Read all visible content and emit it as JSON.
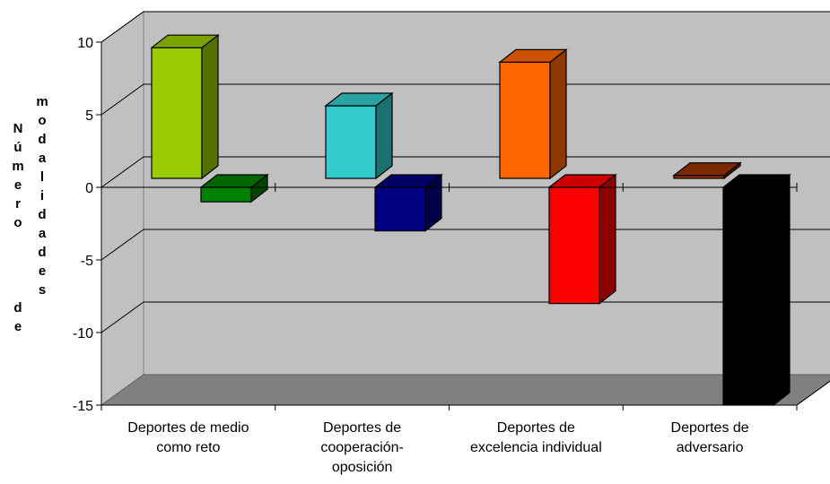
{
  "chart_data": {
    "type": "bar",
    "categories": [
      "Deportes de medio como reto",
      "Deportes de cooperación-oposición",
      "Deportes de excelencia individual",
      "Deportes de adversario"
    ],
    "category_lines": [
      [
        "Deportes de medio",
        "como reto"
      ],
      [
        "Deportes de",
        "cooperación-",
        "oposición"
      ],
      [
        "Deportes de",
        "excelencia individual"
      ],
      [
        "Deportes de",
        "adversario"
      ]
    ],
    "series": [
      {
        "values": [
          9,
          5,
          8,
          0.2
        ]
      },
      {
        "values": [
          -1,
          -3,
          -8,
          -15
        ]
      }
    ],
    "bar_colors": [
      [
        "#99CC00",
        "#33CCCC",
        "#FF6600",
        "#993300"
      ],
      [
        "#008000",
        "#000080",
        "#FF0000",
        "#000000"
      ]
    ],
    "ylabel_columns": [
      "Número",
      "de",
      "modalidades"
    ],
    "yticks": [
      10,
      5,
      0,
      -5,
      -10,
      -15
    ],
    "ylim": [
      -15,
      10
    ],
    "grid": true,
    "colors": {
      "wall": "#C0C0C0",
      "floor": "#808080",
      "gridline": "#000000"
    }
  }
}
